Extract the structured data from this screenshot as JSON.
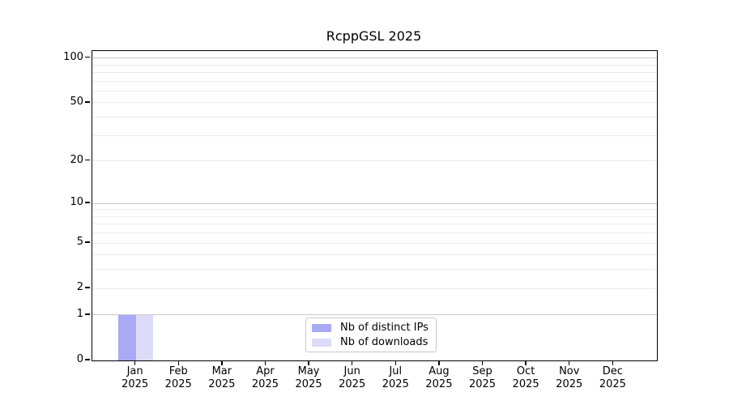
{
  "chart_data": {
    "type": "bar",
    "title": "RcppGSL 2025",
    "categories": [
      "Jan",
      "Feb",
      "Mar",
      "Apr",
      "May",
      "Jun",
      "Jul",
      "Aug",
      "Sep",
      "Oct",
      "Nov",
      "Dec"
    ],
    "x_year_label": "2025",
    "series": [
      {
        "name": "Nb of distinct IPs",
        "color": "#a9a9f5",
        "values": [
          1,
          0,
          0,
          0,
          0,
          0,
          0,
          0,
          0,
          0,
          0,
          0
        ]
      },
      {
        "name": "Nb of downloads",
        "color": "#dcdcf8",
        "values": [
          1,
          0,
          0,
          0,
          0,
          0,
          0,
          0,
          0,
          0,
          0,
          0
        ]
      }
    ],
    "yscale": "log1p",
    "ylim": [
      0,
      111.4
    ],
    "yticks": [
      0,
      1,
      2,
      5,
      10,
      20,
      50,
      100
    ],
    "ytick_labels": [
      "0",
      "1",
      "2",
      "5",
      "10",
      "20",
      "50",
      "100"
    ],
    "major_gridlines": [
      1,
      10,
      100
    ],
    "minor_gridlines": [
      2,
      3,
      4,
      5,
      6,
      7,
      8,
      9,
      20,
      30,
      40,
      50,
      60,
      70,
      80,
      90
    ],
    "grid": true,
    "legend_position": "bottom-center",
    "xlabel": "",
    "ylabel": ""
  },
  "colors": {
    "background": "#ffffff",
    "frame": "#000000",
    "major_grid": "#c9c9c9",
    "minor_grid": "#ececec",
    "text": "#000000",
    "legend_border": "#c8c8c8",
    "bar_distinct_ips": "#a9a9f5",
    "bar_downloads": "#dcdcf8"
  }
}
